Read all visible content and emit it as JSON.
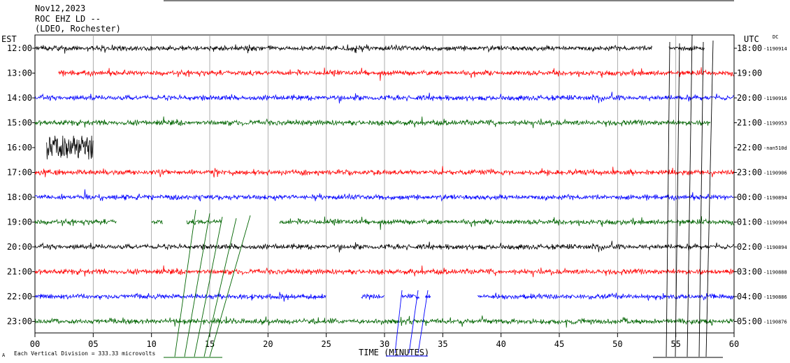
{
  "header": {
    "date": "Nov12,2023",
    "station": "ROC EHZ LD --",
    "network": "(LDEO, Rochester)"
  },
  "axis": {
    "left_title": "EST",
    "right_title": "UTC",
    "dc_label": "DC",
    "xlabel": "TIME (MINUTES)",
    "scale_note": "Each Vertical Division =  333.33 microvolts"
  },
  "chart_data": {
    "type": "line",
    "xlabel": "TIME (MINUTES)",
    "xlim": [
      0,
      60
    ],
    "x_ticks": [
      "00",
      "05",
      "10",
      "15",
      "20",
      "25",
      "30",
      "35",
      "40",
      "45",
      "50",
      "55",
      "60"
    ],
    "vertical_division_microvolts": 333.33,
    "trace_colors": [
      "#000000",
      "#ff0000",
      "#0000ff",
      "#006400"
    ],
    "rows": [
      {
        "est": "12:00",
        "utc": "18:00",
        "dc": "-1190914",
        "color": "#000000",
        "segments": [
          [
            0,
            53
          ],
          [
            54.4,
            57.5
          ]
        ]
      },
      {
        "est": "13:00",
        "utc": "19:00",
        "dc": "",
        "color": "#ff0000",
        "segments": [
          [
            2,
            60
          ]
        ]
      },
      {
        "est": "14:00",
        "utc": "20:00",
        "dc": "-1190916",
        "color": "#0000ff",
        "segments": [
          [
            0,
            60
          ]
        ]
      },
      {
        "est": "15:00",
        "utc": "21:00",
        "dc": "-1190953",
        "color": "#006400",
        "segments": [
          [
            0,
            58
          ]
        ]
      },
      {
        "est": "16:00",
        "utc": "22:00",
        "dc": "-nan510d",
        "color": "#000000",
        "segments": [
          [
            1,
            5
          ]
        ]
      },
      {
        "est": "17:00",
        "utc": "23:00",
        "dc": "-1190906",
        "color": "#ff0000",
        "segments": [
          [
            0,
            60
          ]
        ]
      },
      {
        "est": "18:00",
        "utc": "00:00",
        "dc": "-1190894",
        "color": "#0000ff",
        "segments": [
          [
            0,
            60
          ]
        ]
      },
      {
        "est": "19:00",
        "utc": "01:00",
        "dc": "-1190904",
        "color": "#006400",
        "segments": [
          [
            0,
            7
          ],
          [
            10,
            11
          ],
          [
            13,
            16
          ],
          [
            21,
            60
          ]
        ]
      },
      {
        "est": "20:00",
        "utc": "02:00",
        "dc": "-1190894",
        "color": "#000000",
        "segments": [
          [
            0,
            60
          ]
        ]
      },
      {
        "est": "21:00",
        "utc": "03:00",
        "dc": "-1190888",
        "color": "#ff0000",
        "segments": [
          [
            0,
            60
          ]
        ]
      },
      {
        "est": "22:00",
        "utc": "04:00",
        "dc": "-1190886",
        "color": "#0000ff",
        "segments": [
          [
            0,
            25
          ],
          [
            28,
            30
          ],
          [
            31.5,
            33
          ],
          [
            33.5,
            34
          ],
          [
            38,
            60
          ]
        ]
      },
      {
        "est": "23:00",
        "utc": "05:00",
        "dc": "-1190876",
        "color": "#006400",
        "segments": [
          [
            0,
            60
          ]
        ]
      }
    ]
  }
}
